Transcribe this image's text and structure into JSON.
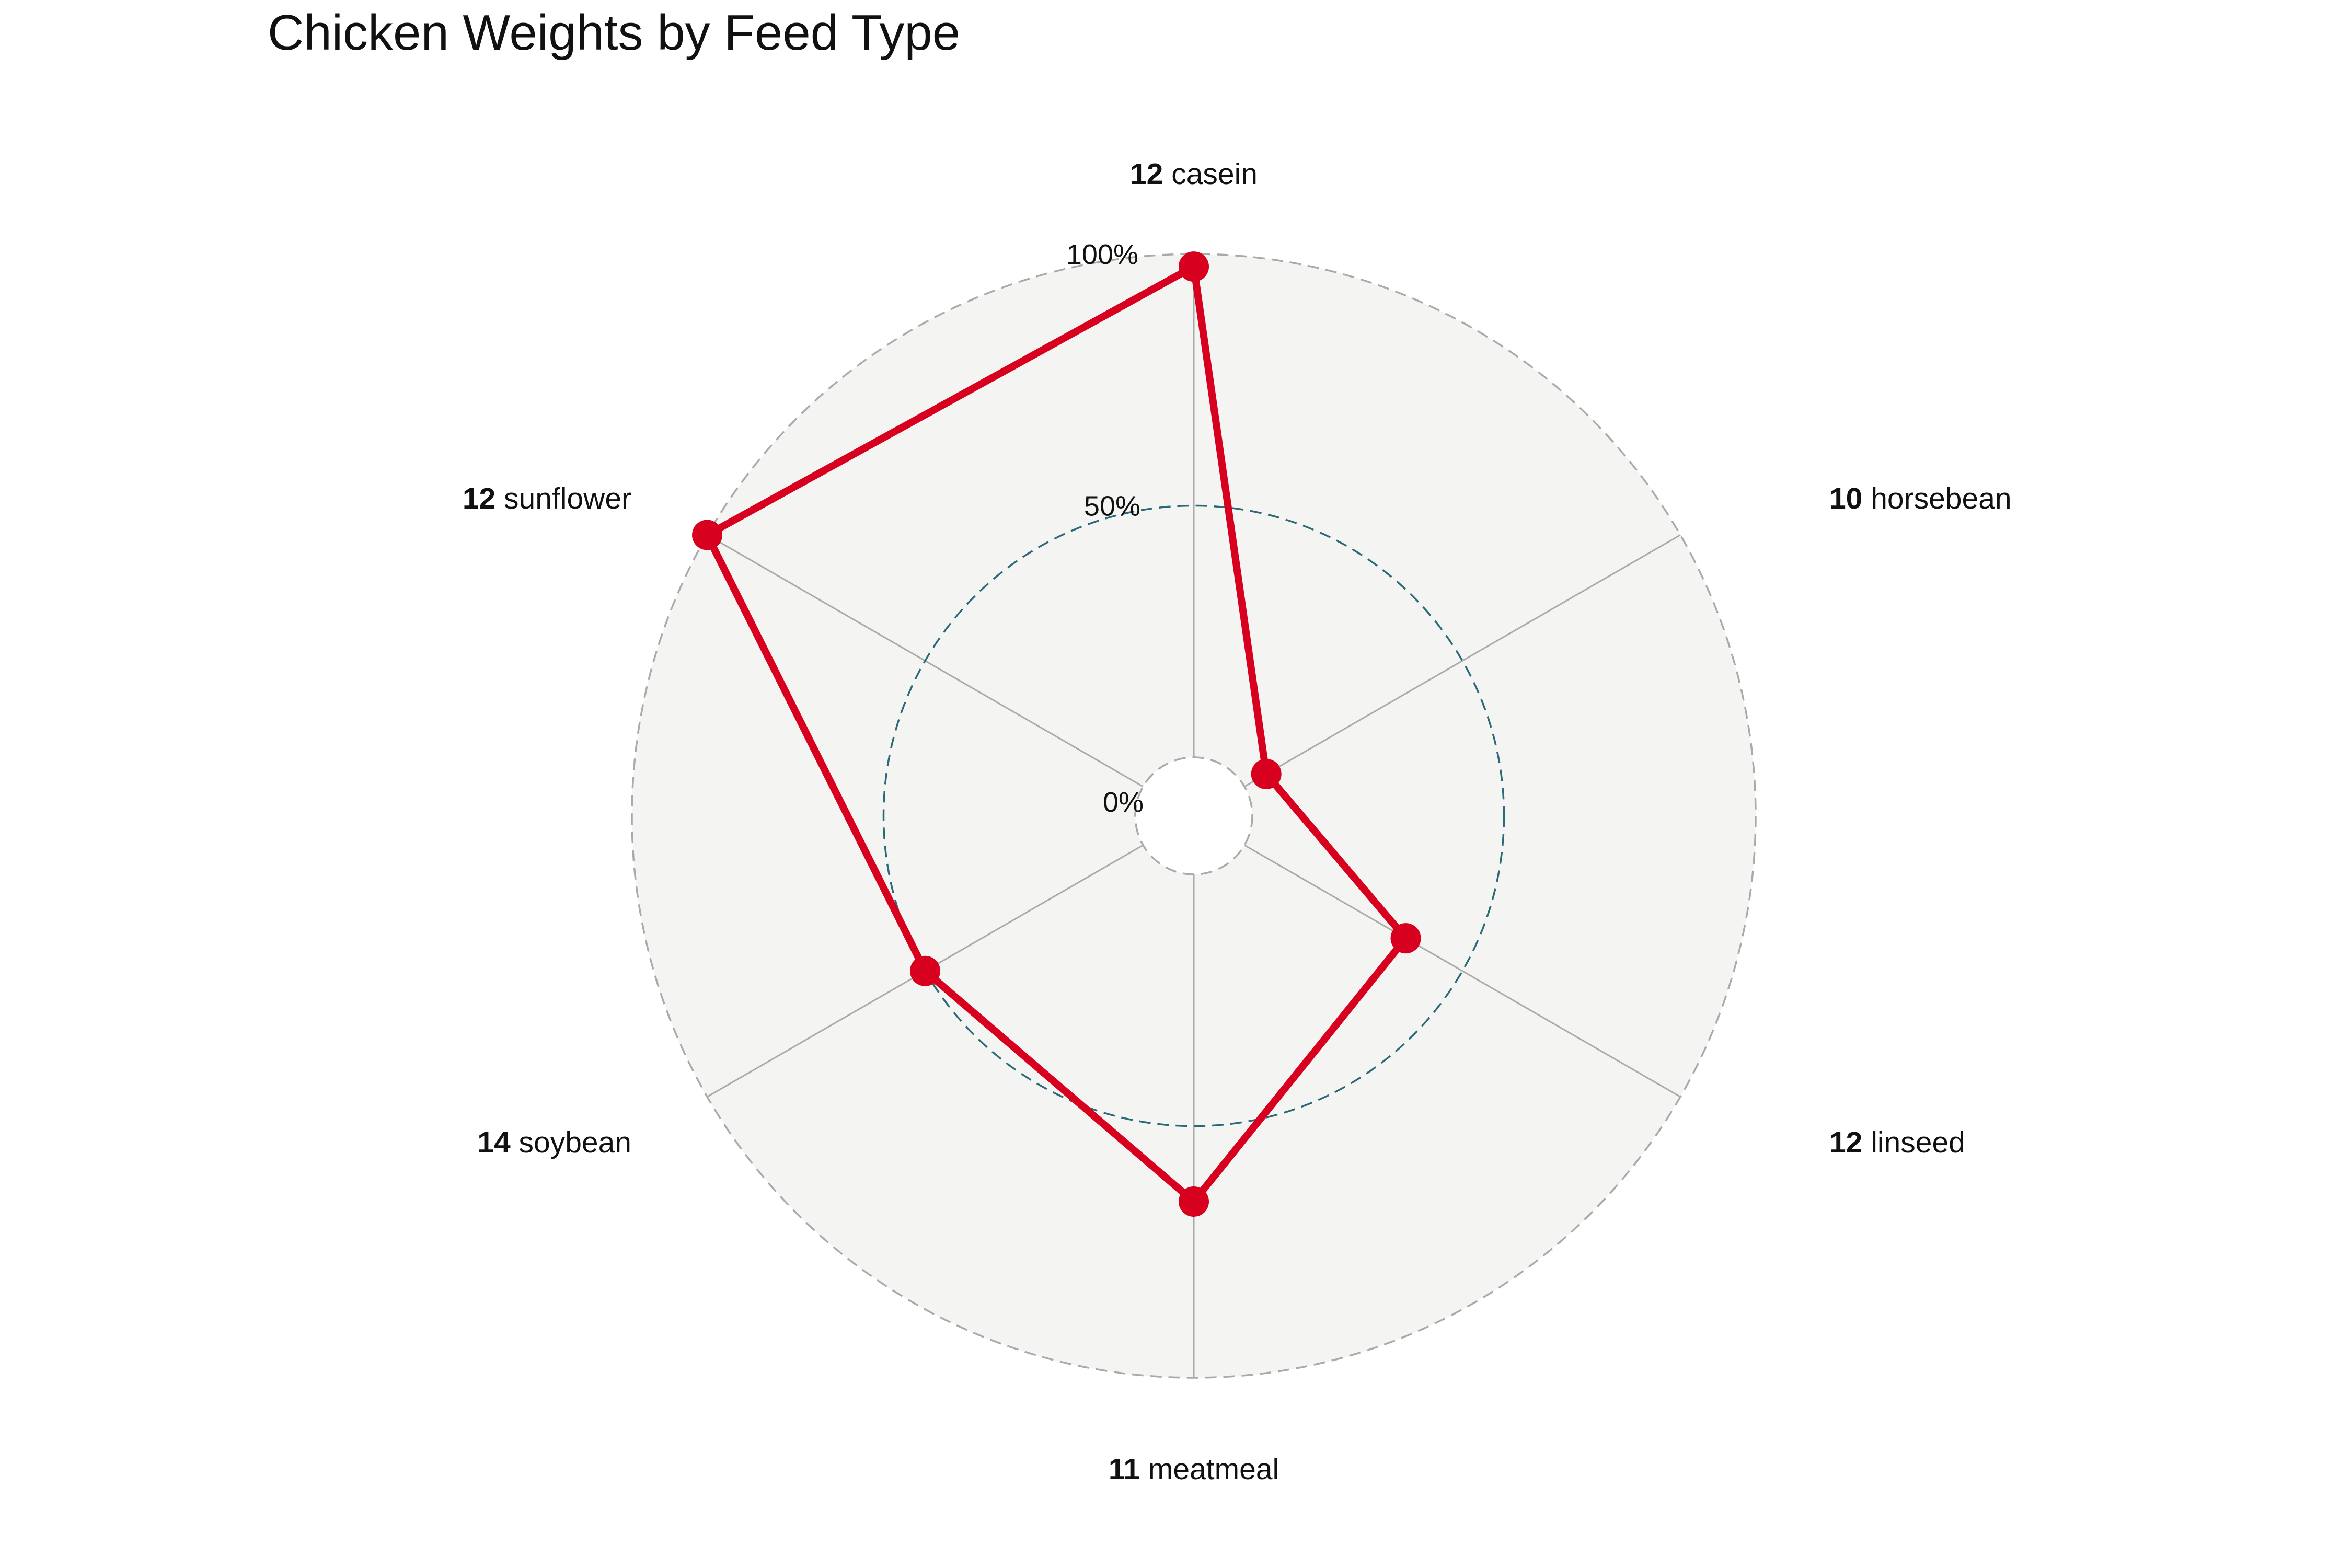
{
  "chart_data": {
    "type": "radar",
    "title": "Chicken Weights by Feed Type",
    "categories": [
      {
        "count": "12",
        "name": "casein"
      },
      {
        "count": "10",
        "name": "horsebean"
      },
      {
        "count": "12",
        "name": "linseed"
      },
      {
        "count": "11",
        "name": "meatmeal"
      },
      {
        "count": "14",
        "name": "soybean"
      },
      {
        "count": "12",
        "name": "sunflower"
      }
    ],
    "values": [
      97.5,
      5.0,
      37.0,
      65.0,
      50.0,
      100.0
    ],
    "value_unit": "%",
    "rlim": [
      0,
      100
    ],
    "grid_labels": [
      "0%",
      "50%",
      "100%"
    ],
    "grid": true,
    "legend": false,
    "colors": {
      "series": "#d7001e",
      "panel": "#f4f4f2",
      "grid_outer": "#aaaaaa",
      "grid_mid": "#2a6a78",
      "spokes": "#aaaaaa"
    }
  }
}
